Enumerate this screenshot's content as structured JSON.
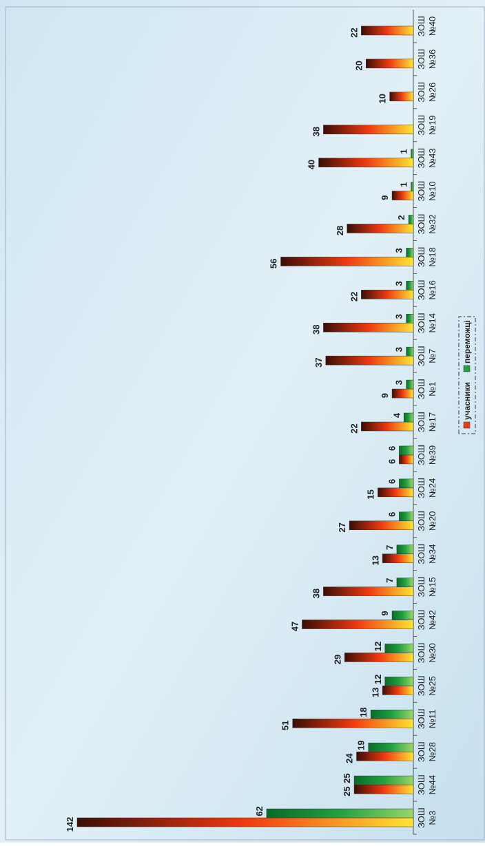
{
  "chart_data": {
    "type": "bar",
    "categories": [
      "ЗОШ №3",
      "ЗОШ №44",
      "ЗОШ №28",
      "ЗОШ №11",
      "ЗОШ №25",
      "ЗОШ №30",
      "ЗОШ №42",
      "ЗОШ №15",
      "ЗОШ №34",
      "ЗОШ №20",
      "ЗОШ №24",
      "ЗОШ №39",
      "ЗОШ №17",
      "ЗОШ №1",
      "ЗОШ №7",
      "ЗОШ №14",
      "ЗОШ №16",
      "ЗОШ №18",
      "ЗОШ №32",
      "ЗОШ №10",
      "ЗОШ №43",
      "ЗОШ №19",
      "ЗОШ №26",
      "ЗОШ №36",
      "ЗОШ №40"
    ],
    "series": [
      {
        "name": "учасники",
        "color": "#f03a10",
        "values": [
          142,
          25,
          24,
          51,
          13,
          29,
          47,
          38,
          13,
          27,
          15,
          6,
          22,
          9,
          37,
          38,
          22,
          56,
          28,
          9,
          40,
          38,
          10,
          20,
          22
        ]
      },
      {
        "name": "переможці",
        "color": "#22a040",
        "values": [
          62,
          25,
          19,
          18,
          12,
          12,
          9,
          7,
          7,
          6,
          6,
          6,
          4,
          3,
          3,
          3,
          3,
          3,
          2,
          1,
          1,
          null,
          null,
          null,
          null
        ]
      }
    ]
  }
}
